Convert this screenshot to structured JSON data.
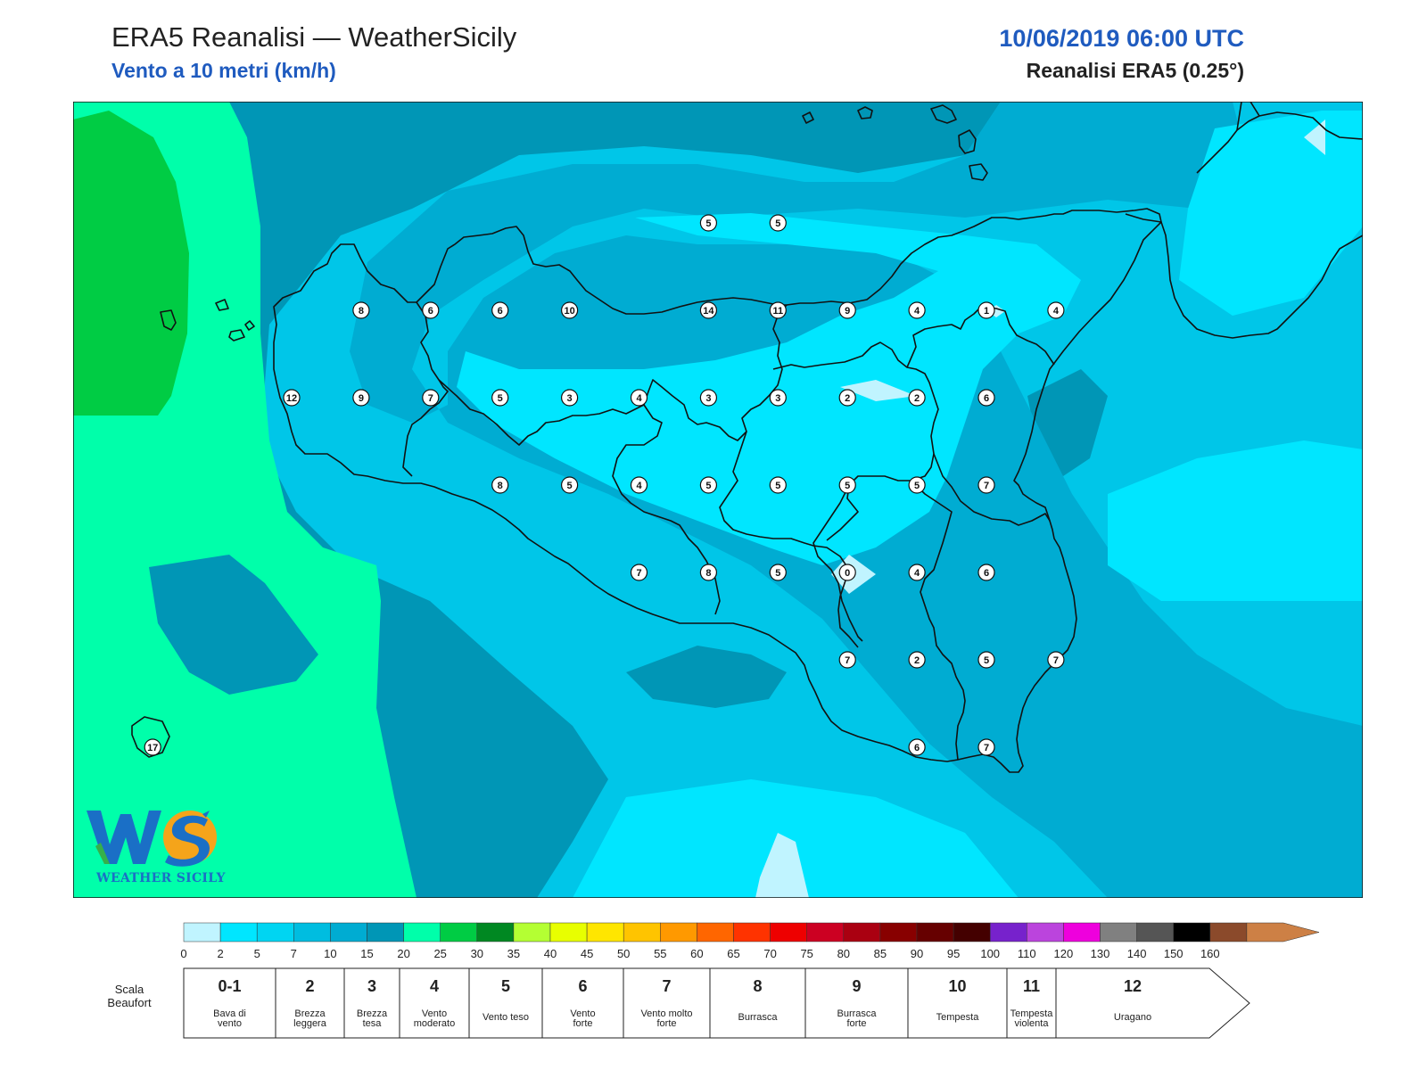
{
  "header": {
    "title": "ERA5 Reanalisi — WeatherSicily",
    "subtitle": "Vento a 10 metri (km/h)",
    "datetime": "10/06/2019 06:00 UTC",
    "source": "Reanalisi ERA5 (0.25°)"
  },
  "logo": {
    "initials": "WS",
    "text": "WEATHER SICILY"
  },
  "colors": {
    "c0": "#c0f4ff",
    "c2": "#00e6ff",
    "c5": "#00d5f2",
    "c7": "#00bde0",
    "c10": "#00acd2",
    "c15": "#0096b6",
    "c20": "#00ffaa",
    "c25": "#00cc44",
    "c30": "#008822",
    "coast": "#111111"
  },
  "wind_scale": {
    "unit": "km/h",
    "ticks": [
      "0",
      "2",
      "5",
      "7",
      "10",
      "15",
      "20",
      "25",
      "30",
      "35",
      "40",
      "45",
      "50",
      "55",
      "60",
      "65",
      "70",
      "75",
      "80",
      "85",
      "90",
      "95",
      "100",
      "110",
      "120",
      "130",
      "140",
      "150",
      "160"
    ],
    "colors": [
      "#c0f4ff",
      "#00e6ff",
      "#00d5f2",
      "#00bde0",
      "#00acd2",
      "#0096b6",
      "#00ffaa",
      "#00cc44",
      "#008822",
      "#b4ff33",
      "#e8ff00",
      "#ffe600",
      "#ffc400",
      "#ff9900",
      "#ff6600",
      "#ff3300",
      "#ee0000",
      "#cc0022",
      "#aa0011",
      "#880000",
      "#660000",
      "#440000",
      "#7722cc",
      "#bb44dd",
      "#ee00dd",
      "#808080",
      "#555555",
      "#000000",
      "#8b4a2b",
      "#cd8045"
    ]
  },
  "beaufort": {
    "label_line1": "Scala",
    "label_line2": "Beaufort",
    "classes": [
      {
        "num": "0-1",
        "desc": [
          "Bava di",
          "vento"
        ]
      },
      {
        "num": "2",
        "desc": [
          "Brezza",
          "leggera"
        ]
      },
      {
        "num": "3",
        "desc": [
          "Brezza",
          "tesa"
        ]
      },
      {
        "num": "4",
        "desc": [
          "Vento",
          "moderato"
        ]
      },
      {
        "num": "5",
        "desc": [
          "Vento teso"
        ]
      },
      {
        "num": "6",
        "desc": [
          "Vento",
          "forte"
        ]
      },
      {
        "num": "7",
        "desc": [
          "Vento molto",
          "forte"
        ]
      },
      {
        "num": "8",
        "desc": [
          "Burrasca"
        ]
      },
      {
        "num": "9",
        "desc": [
          "Burrasca",
          "forte"
        ]
      },
      {
        "num": "10",
        "desc": [
          "Tempesta"
        ]
      },
      {
        "num": "11",
        "desc": [
          "Tempesta",
          "violenta"
        ]
      },
      {
        "num": "12",
        "desc": [
          "Uragano"
        ]
      }
    ]
  },
  "station_values": [
    {
      "lon": 15.0,
      "lat": 38.5,
      "v": "5"
    },
    {
      "lon": 15.5,
      "lat": 38.5,
      "v": "5"
    },
    {
      "lon": 12.5,
      "lat": 38.0,
      "v": "8"
    },
    {
      "lon": 13.0,
      "lat": 38.0,
      "v": "6"
    },
    {
      "lon": 13.5,
      "lat": 38.0,
      "v": "6"
    },
    {
      "lon": 14.0,
      "lat": 38.0,
      "v": "10"
    },
    {
      "lon": 15.0,
      "lat": 38.0,
      "v": "14"
    },
    {
      "lon": 15.5,
      "lat": 38.0,
      "v": "11"
    },
    {
      "lon": 16.0,
      "lat": 38.0,
      "v": "9"
    },
    {
      "lon": 16.5,
      "lat": 38.0,
      "v": "4"
    },
    {
      "lon": 17.0,
      "lat": 38.0,
      "v": "1"
    },
    {
      "lon": 17.5,
      "lat": 38.0,
      "v": "4"
    },
    {
      "lon": 12.0,
      "lat": 37.5,
      "v": "12"
    },
    {
      "lon": 12.5,
      "lat": 37.5,
      "v": "9"
    },
    {
      "lon": 13.0,
      "lat": 37.5,
      "v": "7"
    },
    {
      "lon": 13.5,
      "lat": 37.5,
      "v": "5"
    },
    {
      "lon": 14.0,
      "lat": 37.5,
      "v": "3"
    },
    {
      "lon": 14.5,
      "lat": 37.5,
      "v": "4"
    },
    {
      "lon": 15.0,
      "lat": 37.5,
      "v": "3"
    },
    {
      "lon": 15.5,
      "lat": 37.5,
      "v": "3"
    },
    {
      "lon": 16.0,
      "lat": 37.5,
      "v": "2"
    },
    {
      "lon": 16.5,
      "lat": 37.5,
      "v": "2"
    },
    {
      "lon": 17.0,
      "lat": 37.5,
      "v": "6"
    },
    {
      "lon": 13.5,
      "lat": 37.0,
      "v": "8"
    },
    {
      "lon": 14.0,
      "lat": 37.0,
      "v": "5"
    },
    {
      "lon": 14.5,
      "lat": 37.0,
      "v": "4"
    },
    {
      "lon": 15.0,
      "lat": 37.0,
      "v": "5"
    },
    {
      "lon": 15.5,
      "lat": 37.0,
      "v": "5"
    },
    {
      "lon": 16.0,
      "lat": 37.0,
      "v": "5"
    },
    {
      "lon": 16.5,
      "lat": 37.0,
      "v": "5"
    },
    {
      "lon": 17.0,
      "lat": 37.0,
      "v": "7"
    },
    {
      "lon": 14.5,
      "lat": 36.5,
      "v": "7"
    },
    {
      "lon": 15.0,
      "lat": 36.5,
      "v": "8"
    },
    {
      "lon": 15.5,
      "lat": 36.5,
      "v": "5"
    },
    {
      "lon": 16.0,
      "lat": 36.5,
      "v": "0"
    },
    {
      "lon": 16.5,
      "lat": 36.5,
      "v": "4"
    },
    {
      "lon": 17.0,
      "lat": 36.5,
      "v": "6"
    },
    {
      "lon": 16.0,
      "lat": 36.0,
      "v": "7"
    },
    {
      "lon": 16.5,
      "lat": 36.0,
      "v": "2"
    },
    {
      "lon": 17.0,
      "lat": 36.0,
      "v": "5"
    },
    {
      "lon": 17.5,
      "lat": 36.0,
      "v": "7"
    },
    {
      "lon": 16.5,
      "lat": 35.5,
      "v": "6"
    },
    {
      "lon": 17.0,
      "lat": 35.5,
      "v": "7"
    },
    {
      "lon": 11.0,
      "lat": 35.5,
      "v": "17"
    }
  ]
}
